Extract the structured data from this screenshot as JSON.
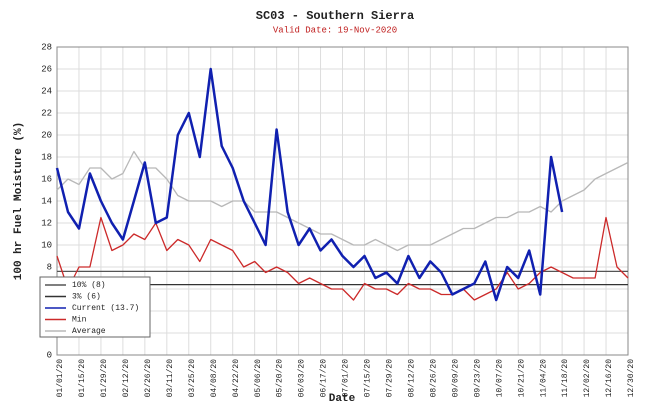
{
  "chart_data": {
    "type": "line",
    "title": "SC03 - Southern Sierra",
    "subtitle": "Valid Date: 19-Nov-2020",
    "y_label": "100 hr Fuel Moisture (%)",
    "x_label": "Date",
    "x": [
      "01/01/20",
      "01/08/20",
      "01/15/20",
      "01/22/20",
      "01/29/20",
      "02/05/20",
      "02/12/20",
      "02/19/20",
      "02/26/20",
      "03/04/20",
      "03/11/20",
      "03/18/20",
      "03/25/20",
      "04/01/20",
      "04/08/20",
      "04/15/20",
      "04/22/20",
      "04/29/20",
      "05/06/20",
      "05/13/20",
      "05/20/20",
      "05/27/20",
      "06/03/20",
      "06/10/20",
      "06/17/20",
      "06/24/20",
      "07/01/20",
      "07/08/20",
      "07/15/20",
      "07/22/20",
      "07/29/20",
      "08/05/20",
      "08/12/20",
      "08/19/20",
      "08/26/20",
      "09/02/20",
      "09/09/20",
      "09/16/20",
      "09/23/20",
      "09/30/20",
      "10/07/20",
      "10/14/20",
      "10/21/20",
      "10/28/20",
      "11/04/20",
      "11/11/20",
      "11/18/20",
      "11/25/20",
      "12/02/20",
      "12/09/20",
      "12/16/20",
      "12/23/20",
      "12/30/20"
    ],
    "xlim": [
      "01/01/20",
      "12/30/20"
    ],
    "xticks": [
      "01/01/20",
      "01/15/20",
      "01/29/20",
      "02/12/20",
      "02/26/20",
      "03/11/20",
      "03/25/20",
      "04/08/20",
      "04/22/20",
      "05/06/20",
      "05/20/20",
      "06/03/20",
      "06/17/20",
      "07/01/20",
      "07/15/20",
      "07/29/20",
      "08/12/20",
      "08/26/20",
      "09/09/20",
      "09/23/20",
      "10/07/20",
      "10/21/20",
      "11/04/20",
      "11/18/20",
      "12/02/20",
      "12/16/20",
      "12/30/20"
    ],
    "ylim": [
      0,
      28
    ],
    "yticks": [
      0,
      2,
      4,
      6,
      8,
      10,
      12,
      14,
      16,
      18,
      20,
      22,
      24,
      26,
      28
    ],
    "grid": true,
    "hlines": [
      {
        "name": "10% (8)",
        "value": 7.6,
        "color": "#555555"
      },
      {
        "name": "3% (6)",
        "value": 6.4,
        "color": "#333333"
      }
    ],
    "series": [
      {
        "name": "Current (13.7)",
        "color": "#1020b0",
        "width": 2.5,
        "values": [
          17,
          13,
          11.5,
          16.5,
          14,
          12,
          10.5,
          14,
          17.5,
          12,
          12.5,
          20,
          22,
          18,
          26,
          19,
          17,
          14,
          12,
          10,
          20.5,
          13,
          10,
          11.5,
          9.5,
          10.5,
          9,
          8,
          9,
          7,
          7.5,
          6.5,
          9,
          7,
          8.5,
          7.5,
          5.5,
          6,
          6.5,
          8.5,
          5,
          8,
          7,
          9.5,
          5.5,
          18,
          13,
          null,
          null,
          null,
          null,
          null,
          null
        ]
      },
      {
        "name": "Min",
        "color": "#cc2a2a",
        "width": 1.3,
        "values": [
          9,
          6,
          8,
          8,
          12.5,
          9.5,
          10,
          11,
          10.5,
          12,
          9.5,
          10.5,
          10,
          8.5,
          10.5,
          10,
          9.5,
          8,
          8.5,
          7.5,
          8,
          7.5,
          6.5,
          7,
          6.5,
          6,
          6,
          5,
          6.5,
          6,
          6,
          5.5,
          6.5,
          6,
          6,
          5.5,
          5.5,
          6,
          5,
          5.5,
          6,
          7.5,
          6,
          6.5,
          7.5,
          8,
          7.5,
          7,
          7,
          7,
          12.5,
          8,
          7
        ]
      },
      {
        "name": "Average",
        "color": "#b8b8b8",
        "width": 1.3,
        "values": [
          15,
          16,
          15.5,
          17,
          17,
          16,
          16.5,
          18.5,
          17,
          17,
          16,
          14.5,
          14,
          14,
          14,
          13.5,
          14,
          14,
          13,
          13,
          13,
          12.5,
          12,
          11.5,
          11,
          11,
          10.5,
          10,
          10,
          10.5,
          10,
          9.5,
          10,
          10,
          10,
          10.5,
          11,
          11.5,
          11.5,
          12,
          12.5,
          12.5,
          13,
          13,
          13.5,
          13,
          14,
          14.5,
          15,
          16,
          16.5,
          17,
          17.5
        ]
      }
    ]
  }
}
